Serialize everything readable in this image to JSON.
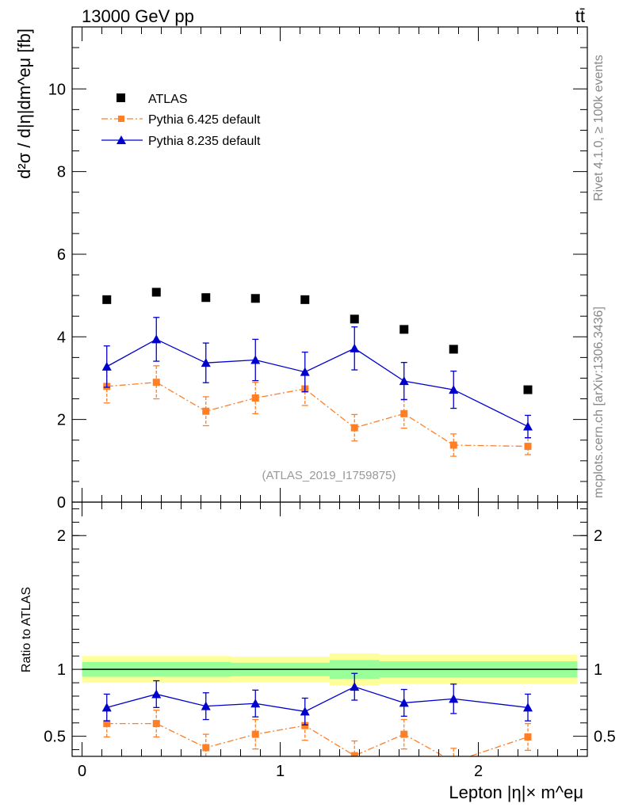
{
  "header": {
    "left": "13000 GeV pp",
    "right": "tt̄"
  },
  "side_text": {
    "rivet": "Rivet 4.1.0, ≥ 100k events",
    "mcplots": "mcplots.cern.ch [arXiv:1306.3436]"
  },
  "analysis_id": "(ATLAS_2019_I1759875)",
  "colors": {
    "atlas": "#000000",
    "py6": "#ff7f27",
    "py8": "#0000cc",
    "band_green": "#99ff99",
    "band_yellow": "#ffff99"
  },
  "chart_data": [
    {
      "type": "scatter",
      "title": "",
      "ylabel": "d²σ / d|η|dm^eμ [fb]",
      "xlim": [
        -0.05,
        2.55
      ],
      "ylim": [
        0,
        11.5
      ],
      "y_ticks": [
        0,
        2,
        4,
        6,
        8,
        10
      ],
      "x": [
        0.125,
        0.375,
        0.625,
        0.875,
        1.125,
        1.375,
        1.625,
        1.875,
        2.25
      ],
      "legend": {
        "position": "top-left"
      },
      "series": [
        {
          "name": "ATLAS",
          "style": "markers",
          "values": [
            4.9,
            5.08,
            4.95,
            4.93,
            4.9,
            4.43,
            4.18,
            3.7,
            2.72
          ]
        },
        {
          "name": "Pythia 6.425 default",
          "style": "dashdot",
          "values": [
            2.8,
            2.9,
            2.2,
            2.52,
            2.74,
            1.8,
            2.14,
            1.38,
            1.35
          ],
          "err_up": [
            0.4,
            0.4,
            0.35,
            0.38,
            0.4,
            0.32,
            0.35,
            0.27,
            0.2
          ],
          "err_down": [
            0.4,
            0.4,
            0.35,
            0.38,
            0.4,
            0.32,
            0.35,
            0.27,
            0.2
          ]
        },
        {
          "name": "Pythia 8.235 default",
          "style": "solid",
          "values": [
            3.28,
            3.94,
            3.37,
            3.44,
            3.15,
            3.72,
            2.93,
            2.72,
            1.83
          ],
          "err_up": [
            0.5,
            0.53,
            0.48,
            0.5,
            0.48,
            0.52,
            0.45,
            0.45,
            0.27
          ],
          "err_down": [
            0.5,
            0.53,
            0.48,
            0.5,
            0.48,
            0.52,
            0.45,
            0.45,
            0.27
          ]
        }
      ]
    },
    {
      "type": "line",
      "title": "",
      "ylabel": "Ratio to ATLAS",
      "xlabel": "Lepton |η|× m^eμ",
      "xlim": [
        -0.05,
        2.55
      ],
      "ylim": [
        0.35,
        2.25
      ],
      "y_ticks": [
        0.5,
        1,
        2
      ],
      "y_tick_labels": [
        "0.5",
        "1",
        "2"
      ],
      "x_ticks": [
        0,
        1,
        2
      ],
      "x": [
        0.125,
        0.375,
        0.625,
        0.875,
        1.125,
        1.375,
        1.625,
        1.875,
        2.25
      ],
      "bin_edges": [
        0,
        0.25,
        0.5,
        0.75,
        1.0,
        1.25,
        1.5,
        1.75,
        2.0,
        2.5
      ],
      "band_inner": [
        0.055,
        0.055,
        0.055,
        0.05,
        0.05,
        0.07,
        0.06,
        0.06,
        0.06
      ],
      "band_outer": [
        0.1,
        0.1,
        0.1,
        0.095,
        0.095,
        0.12,
        0.11,
        0.11,
        0.11
      ],
      "series": [
        {
          "name": "Pythia 6.425 default",
          "style": "dashdot",
          "values": [
            0.595,
            0.595,
            0.415,
            0.515,
            0.58,
            0.355,
            0.515,
            0.31,
            0.495
          ],
          "err_up": [
            0.1,
            0.1,
            0.1,
            0.11,
            0.11,
            0.11,
            0.11,
            0.1,
            0.1
          ],
          "err_down": [
            0.1,
            0.1,
            0.1,
            0.11,
            0.11,
            0.11,
            0.11,
            0.1,
            0.1
          ]
        },
        {
          "name": "Pythia 8.235 default",
          "style": "solid",
          "values": [
            0.715,
            0.815,
            0.725,
            0.745,
            0.685,
            0.87,
            0.75,
            0.78,
            0.715
          ],
          "err_up": [
            0.1,
            0.1,
            0.1,
            0.1,
            0.1,
            0.1,
            0.1,
            0.11,
            0.1
          ],
          "err_down": [
            0.1,
            0.1,
            0.1,
            0.1,
            0.1,
            0.1,
            0.1,
            0.11,
            0.1
          ]
        }
      ]
    }
  ]
}
